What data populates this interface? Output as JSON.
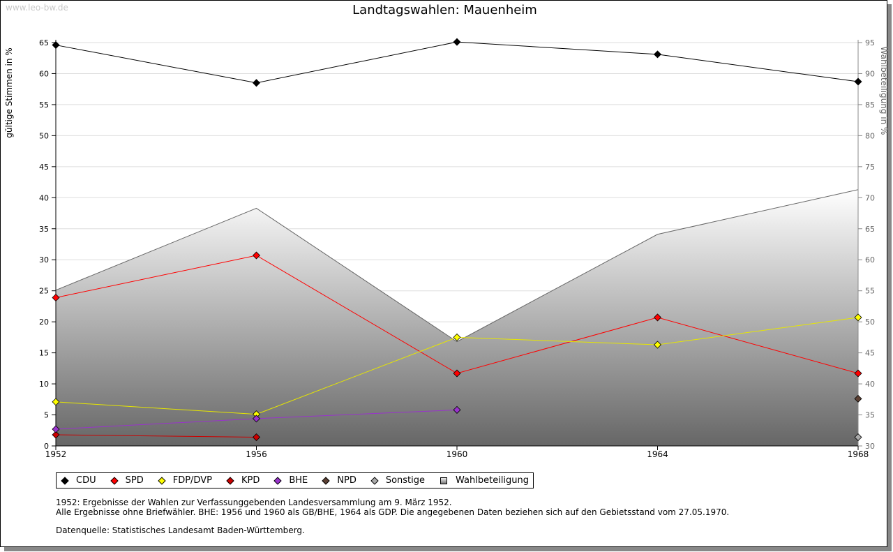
{
  "watermark": "www.leo-bw.de",
  "chart_data": {
    "type": "line",
    "title": "Landtagswahlen: Mauenheim",
    "ylabel": "gültige Stimmen in %",
    "y2label": "Wahlbeteiligung in %",
    "x": [
      1952,
      1956,
      1960,
      1964,
      1968
    ],
    "ylim": [
      0,
      65
    ],
    "y2lim": [
      30,
      95
    ],
    "yticks": [
      0,
      5,
      10,
      15,
      20,
      25,
      30,
      35,
      40,
      45,
      50,
      55,
      60,
      65
    ],
    "y2ticks": [
      30,
      35,
      40,
      45,
      50,
      55,
      60,
      65,
      70,
      75,
      80,
      85,
      90,
      95
    ],
    "grid": true,
    "legend_position": "bottom",
    "series": [
      {
        "name": "CDU",
        "color": "#000000",
        "values": [
          64.6,
          58.5,
          65.1,
          63.1,
          58.7
        ]
      },
      {
        "name": "SPD",
        "color": "#ff0000",
        "values": [
          23.9,
          30.7,
          11.7,
          20.7,
          11.7
        ]
      },
      {
        "name": "FDP/DVP",
        "color": "#ffff00",
        "line": "#e6e600",
        "values": [
          7.1,
          5.1,
          17.5,
          16.3,
          20.7
        ]
      },
      {
        "name": "KPD",
        "color": "#cc0000",
        "values": [
          1.8,
          1.4,
          null,
          null,
          null
        ]
      },
      {
        "name": "BHE",
        "color": "#9933cc",
        "values": [
          2.7,
          4.4,
          5.8,
          null,
          null
        ]
      },
      {
        "name": "NPD",
        "color": "#5c4033",
        "values": [
          null,
          null,
          null,
          null,
          7.6
        ]
      },
      {
        "name": "Sonstige",
        "color": "#aaaaaa",
        "values": [
          null,
          null,
          null,
          null,
          1.4
        ]
      }
    ],
    "turnout": {
      "name": "Wahlbeteiligung",
      "axis": "right",
      "values": [
        55.1,
        68.3,
        46.8,
        64.1,
        71.3
      ]
    }
  },
  "notes": [
    "1952: Ergebnisse der Wahlen zur Verfassunggebenden Landesversammlung am 9. März 1952.",
    "Alle Ergebnisse ohne Briefwähler. BHE: 1956 und 1960 als GB/BHE, 1964 als GDP. Die angegebenen Daten beziehen sich auf den Gebietsstand vom 27.05.1970.",
    "Datenquelle: Statistisches Landesamt Baden-Württemberg."
  ]
}
